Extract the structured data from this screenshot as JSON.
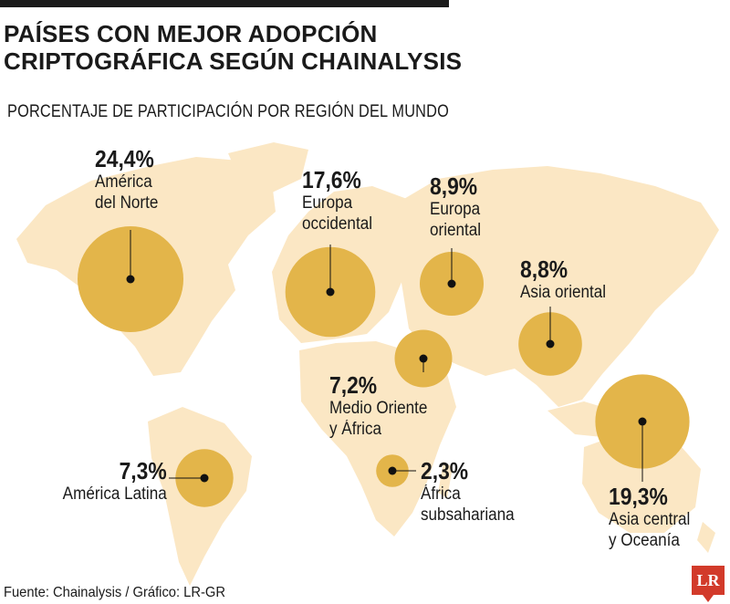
{
  "header": {
    "title_line1": "PAÍSES CON MEJOR ADOPCIÓN",
    "title_line2": "CRIPTOGRÁFICA SEGÚN CHAINALYSIS",
    "subtitle": "PORCENTAJE DE PARTICIPACIÓN POR REGIÓN DEL MUNDO"
  },
  "colors": {
    "land": "#fbe7c4",
    "bubble": "#e3b54a",
    "dot": "#111111",
    "logo": "#d23a2a"
  },
  "regions": [
    {
      "id": "north-america",
      "value": 24.4,
      "pct": "24,4%",
      "line1": "América",
      "line2": "del Norte"
    },
    {
      "id": "western-europe",
      "value": 17.6,
      "pct": "17,6%",
      "line1": "Europa",
      "line2": "occidental"
    },
    {
      "id": "eastern-europe",
      "value": 8.9,
      "pct": "8,9%",
      "line1": "Europa",
      "line2": "oriental"
    },
    {
      "id": "east-asia",
      "value": 8.8,
      "pct": "8,8%",
      "line1": "Asia oriental",
      "line2": ""
    },
    {
      "id": "middle-east-africa",
      "value": 7.2,
      "pct": "7,2%",
      "line1": "Medio Oriente",
      "line2": "y África"
    },
    {
      "id": "latin-america",
      "value": 7.3,
      "pct": "7,3%",
      "line1": "América Latina",
      "line2": ""
    },
    {
      "id": "sub-saharan-africa",
      "value": 2.3,
      "pct": "2,3%",
      "line1": "África",
      "line2": "subsahariana"
    },
    {
      "id": "central-asia-oceania",
      "value": 19.3,
      "pct": "19,3%",
      "line1": "Asia central",
      "line2": "y Oceanía"
    }
  ],
  "footer": {
    "source": "Fuente: Chainalysis / Gráfico: LR-GR",
    "logo": "LR"
  }
}
